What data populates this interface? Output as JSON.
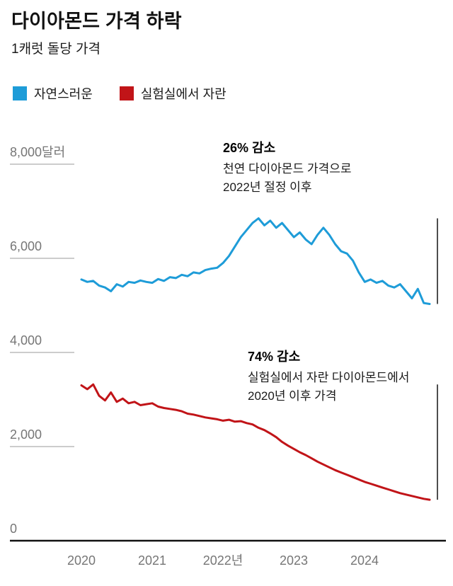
{
  "header": {
    "title": "다이아몬드 가격 하락",
    "subtitle": "1캐럿 돌당 가격"
  },
  "legend": [
    {
      "label": "자연스러운",
      "color": "#1E9CD8"
    },
    {
      "label": "실험실에서 자란",
      "color": "#C11418"
    }
  ],
  "annotations": {
    "natural": {
      "headline": "26% 감소",
      "line1": "천연 다이아몬드 가격으로",
      "line2": "2022년 절정 이후"
    },
    "lab": {
      "headline": "74% 감소",
      "line1": "실험실에서 자란 다이아몬드에서",
      "line2": "2020년 이후 가격"
    }
  },
  "chart_data": {
    "type": "line",
    "title": "다이아몬드 가격 하락",
    "subtitle": "1캐럿 돌당 가격",
    "unit": "달러",
    "ylim": [
      0,
      8000
    ],
    "grid": "short-left-ticks",
    "legend_position": "top-left",
    "y_ticks": [
      {
        "value": 8000,
        "label": "8,000달러"
      },
      {
        "value": 6000,
        "label": "6,000"
      },
      {
        "value": 4000,
        "label": "4,000"
      },
      {
        "value": 2000,
        "label": "2,000"
      },
      {
        "value": 0,
        "label": "0"
      }
    ],
    "x_ticks": [
      {
        "year": 2020,
        "label": "2020"
      },
      {
        "year": 2021,
        "label": "2021"
      },
      {
        "year": 2022,
        "label": "2022년"
      },
      {
        "year": 2023,
        "label": "2023"
      },
      {
        "year": 2024,
        "label": "2024"
      }
    ],
    "x_start_year": 2020,
    "x_interval": "monthly",
    "series": [
      {
        "name": "자연스러운",
        "color": "#1E9CD8",
        "values": [
          5550,
          5500,
          5520,
          5420,
          5380,
          5300,
          5450,
          5400,
          5500,
          5480,
          5530,
          5500,
          5480,
          5560,
          5520,
          5600,
          5580,
          5650,
          5620,
          5700,
          5680,
          5750,
          5780,
          5800,
          5900,
          6050,
          6250,
          6450,
          6600,
          6750,
          6850,
          6700,
          6800,
          6650,
          6750,
          6600,
          6450,
          6550,
          6400,
          6300,
          6500,
          6650,
          6500,
          6300,
          6150,
          6100,
          5950,
          5700,
          5500,
          5550,
          5480,
          5520,
          5420,
          5380,
          5450,
          5300,
          5150,
          5350,
          5050,
          5030
        ],
        "peak": 6850,
        "last": 5030,
        "change_pct": -26
      },
      {
        "name": "실험실에서 자란",
        "color": "#C11418",
        "values": [
          3300,
          3220,
          3320,
          3080,
          2980,
          3150,
          2950,
          3020,
          2920,
          2950,
          2880,
          2900,
          2920,
          2850,
          2820,
          2800,
          2780,
          2750,
          2700,
          2680,
          2650,
          2620,
          2600,
          2580,
          2550,
          2570,
          2530,
          2540,
          2500,
          2470,
          2400,
          2350,
          2280,
          2200,
          2100,
          2020,
          1950,
          1880,
          1820,
          1750,
          1680,
          1620,
          1560,
          1500,
          1450,
          1400,
          1350,
          1300,
          1250,
          1210,
          1170,
          1130,
          1090,
          1050,
          1010,
          980,
          950,
          920,
          890,
          870
        ],
        "peak": 3300,
        "last": 870,
        "change_pct": -74
      }
    ]
  }
}
